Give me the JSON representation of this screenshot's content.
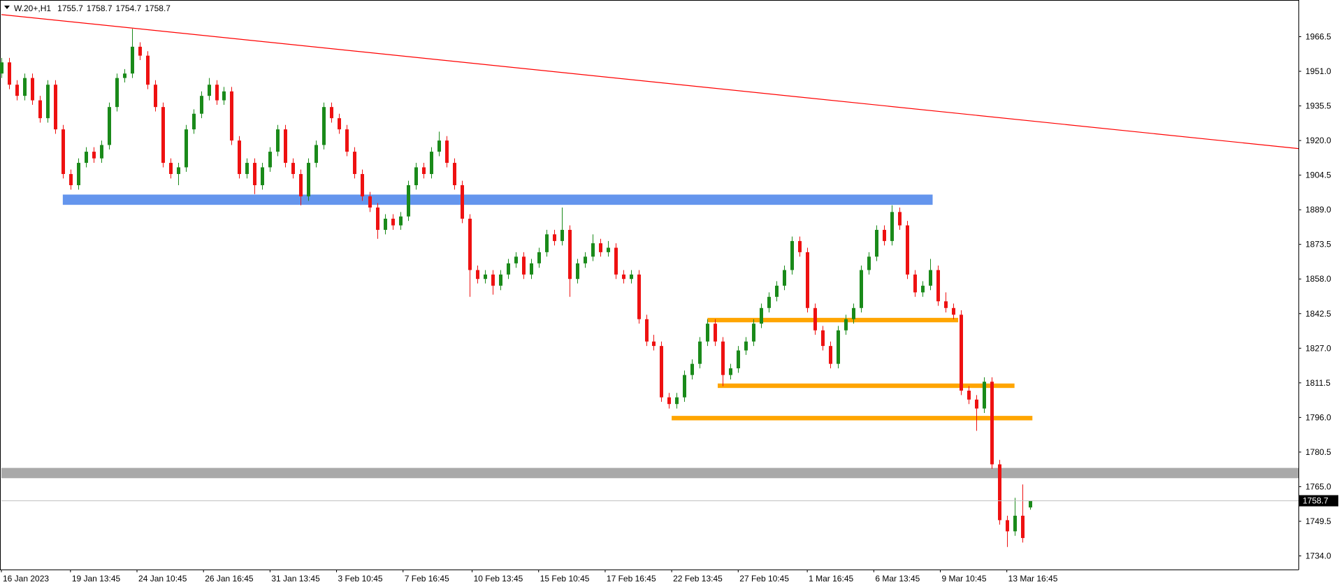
{
  "chart_data": {
    "type": "candlestick",
    "symbol": "W.20+,H1",
    "x": [
      0,
      3,
      6,
      9,
      12,
      15,
      18,
      21,
      24,
      27,
      30,
      33,
      36,
      39,
      42,
      45,
      48,
      51,
      54,
      57,
      60,
      63,
      66,
      69,
      72,
      75,
      78,
      81,
      84,
      87,
      90,
      93,
      96,
      99,
      102,
      105,
      108,
      111,
      114,
      117,
      120,
      123,
      126,
      129,
      132,
      135,
      138,
      141,
      144,
      147,
      150,
      153,
      156,
      159,
      162,
      165,
      168,
      171,
      174,
      177,
      180,
      183,
      186,
      189,
      192,
      195,
      198,
      201,
      204,
      207,
      210,
      213,
      216,
      219,
      222,
      225,
      228,
      231,
      234,
      237,
      240,
      243,
      246,
      249,
      252,
      255,
      258,
      261,
      264,
      267,
      270,
      273,
      276,
      279,
      282,
      285,
      288,
      291,
      294,
      297,
      300,
      303,
      306,
      309,
      312,
      315,
      318,
      321,
      324,
      327,
      330,
      333,
      336,
      339,
      342,
      345,
      348,
      351,
      354,
      357,
      360,
      363,
      366,
      369,
      372,
      375,
      378,
      381,
      384,
      387,
      390,
      393,
      396,
      399,
      402
    ],
    "ohlc": [
      [
        1950,
        1957,
        1948,
        1955
      ],
      [
        1955,
        1957,
        1943,
        1945
      ],
      [
        1945,
        1947,
        1938,
        1940
      ],
      [
        1940,
        1950,
        1938,
        1948
      ],
      [
        1948,
        1950,
        1936,
        1938
      ],
      [
        1938,
        1940,
        1928,
        1930
      ],
      [
        1930,
        1947,
        1928,
        1945
      ],
      [
        1945,
        1947,
        1923,
        1925
      ],
      [
        1925,
        1927,
        1903,
        1905
      ],
      [
        1905,
        1907,
        1898,
        1900
      ],
      [
        1900,
        1912,
        1898,
        1910
      ],
      [
        1910,
        1917,
        1908,
        1915
      ],
      [
        1915,
        1917,
        1910,
        1912
      ],
      [
        1912,
        1920,
        1910,
        1918
      ],
      [
        1918,
        1937,
        1916,
        1935
      ],
      [
        1935,
        1950,
        1933,
        1948
      ],
      [
        1948,
        1952,
        1946,
        1950
      ],
      [
        1950,
        1970,
        1948,
        1962
      ],
      [
        1962,
        1964,
        1956,
        1958
      ],
      [
        1958,
        1960,
        1943,
        1945
      ],
      [
        1945,
        1947,
        1933,
        1935
      ],
      [
        1935,
        1937,
        1908,
        1910
      ],
      [
        1910,
        1912,
        1903,
        1905
      ],
      [
        1905,
        1910,
        1900,
        1908
      ],
      [
        1908,
        1927,
        1906,
        1925
      ],
      [
        1925,
        1934,
        1923,
        1932
      ],
      [
        1932,
        1942,
        1930,
        1940
      ],
      [
        1940,
        1948,
        1938,
        1945
      ],
      [
        1945,
        1947,
        1936,
        1938
      ],
      [
        1938,
        1944,
        1936,
        1942
      ],
      [
        1942,
        1944,
        1918,
        1920
      ],
      [
        1920,
        1922,
        1903,
        1905
      ],
      [
        1905,
        1912,
        1903,
        1910
      ],
      [
        1910,
        1912,
        1896,
        1900
      ],
      [
        1900,
        1910,
        1898,
        1908
      ],
      [
        1908,
        1917,
        1906,
        1915
      ],
      [
        1915,
        1927,
        1913,
        1925
      ],
      [
        1925,
        1927,
        1908,
        1910
      ],
      [
        1910,
        1912,
        1903,
        1905
      ],
      [
        1905,
        1907,
        1891,
        1895
      ],
      [
        1895,
        1912,
        1893,
        1910
      ],
      [
        1910,
        1920,
        1908,
        1918
      ],
      [
        1918,
        1937,
        1916,
        1935
      ],
      [
        1935,
        1937,
        1928,
        1930
      ],
      [
        1930,
        1932,
        1923,
        1925
      ],
      [
        1925,
        1927,
        1913,
        1915
      ],
      [
        1915,
        1917,
        1903,
        1905
      ],
      [
        1905,
        1907,
        1893,
        1895
      ],
      [
        1895,
        1897,
        1888,
        1890
      ],
      [
        1890,
        1892,
        1876,
        1880
      ],
      [
        1880,
        1887,
        1878,
        1885
      ],
      [
        1885,
        1887,
        1880,
        1882
      ],
      [
        1882,
        1888,
        1880,
        1886
      ],
      [
        1886,
        1902,
        1884,
        1900
      ],
      [
        1900,
        1910,
        1898,
        1908
      ],
      [
        1908,
        1910,
        1903,
        1905
      ],
      [
        1905,
        1917,
        1903,
        1915
      ],
      [
        1915,
        1924,
        1913,
        1920
      ],
      [
        1920,
        1922,
        1908,
        1910
      ],
      [
        1910,
        1912,
        1898,
        1900
      ],
      [
        1900,
        1902,
        1883,
        1885
      ],
      [
        1885,
        1887,
        1850,
        1862
      ],
      [
        1862,
        1864,
        1856,
        1858
      ],
      [
        1858,
        1862,
        1856,
        1860
      ],
      [
        1860,
        1862,
        1851,
        1855
      ],
      [
        1855,
        1862,
        1853,
        1860
      ],
      [
        1860,
        1867,
        1858,
        1865
      ],
      [
        1865,
        1870,
        1863,
        1868
      ],
      [
        1868,
        1870,
        1858,
        1860
      ],
      [
        1860,
        1867,
        1858,
        1865
      ],
      [
        1865,
        1872,
        1863,
        1870
      ],
      [
        1870,
        1880,
        1868,
        1878
      ],
      [
        1878,
        1880,
        1873,
        1875
      ],
      [
        1875,
        1890,
        1873,
        1880
      ],
      [
        1880,
        1882,
        1850,
        1858
      ],
      [
        1858,
        1867,
        1856,
        1865
      ],
      [
        1865,
        1870,
        1863,
        1868
      ],
      [
        1868,
        1878,
        1866,
        1874
      ],
      [
        1874,
        1876,
        1868,
        1870
      ],
      [
        1870,
        1875,
        1868,
        1872
      ],
      [
        1872,
        1874,
        1858,
        1860
      ],
      [
        1860,
        1862,
        1856,
        1858
      ],
      [
        1858,
        1862,
        1856,
        1860
      ],
      [
        1860,
        1862,
        1838,
        1840
      ],
      [
        1840,
        1842,
        1828,
        1830
      ],
      [
        1830,
        1833,
        1826,
        1828
      ],
      [
        1828,
        1830,
        1803,
        1805
      ],
      [
        1805,
        1807,
        1800,
        1802
      ],
      [
        1802,
        1807,
        1800,
        1805
      ],
      [
        1805,
        1817,
        1803,
        1815
      ],
      [
        1815,
        1822,
        1813,
        1820
      ],
      [
        1820,
        1832,
        1818,
        1830
      ],
      [
        1830,
        1840,
        1828,
        1838
      ],
      [
        1838,
        1840,
        1828,
        1830
      ],
      [
        1830,
        1832,
        1810,
        1815
      ],
      [
        1815,
        1820,
        1813,
        1818
      ],
      [
        1818,
        1828,
        1816,
        1826
      ],
      [
        1826,
        1832,
        1824,
        1830
      ],
      [
        1830,
        1840,
        1828,
        1838
      ],
      [
        1838,
        1847,
        1836,
        1845
      ],
      [
        1845,
        1852,
        1843,
        1850
      ],
      [
        1850,
        1857,
        1848,
        1855
      ],
      [
        1855,
        1864,
        1853,
        1862
      ],
      [
        1862,
        1877,
        1860,
        1875
      ],
      [
        1875,
        1877,
        1868,
        1870
      ],
      [
        1870,
        1872,
        1843,
        1845
      ],
      [
        1845,
        1847,
        1833,
        1835
      ],
      [
        1835,
        1837,
        1826,
        1828
      ],
      [
        1828,
        1830,
        1818,
        1820
      ],
      [
        1820,
        1837,
        1818,
        1835
      ],
      [
        1835,
        1842,
        1833,
        1840
      ],
      [
        1840,
        1847,
        1838,
        1845
      ],
      [
        1845,
        1864,
        1843,
        1862
      ],
      [
        1862,
        1870,
        1860,
        1868
      ],
      [
        1868,
        1882,
        1866,
        1880
      ],
      [
        1880,
        1882,
        1873,
        1875
      ],
      [
        1875,
        1891,
        1873,
        1888
      ],
      [
        1888,
        1890,
        1880,
        1882
      ],
      [
        1882,
        1884,
        1858,
        1860
      ],
      [
        1860,
        1862,
        1850,
        1852
      ],
      [
        1852,
        1857,
        1850,
        1855
      ],
      [
        1855,
        1867,
        1853,
        1862
      ],
      [
        1862,
        1864,
        1846,
        1848
      ],
      [
        1848,
        1852,
        1843,
        1845
      ],
      [
        1845,
        1847,
        1840,
        1842
      ],
      [
        1842,
        1844,
        1806,
        1808
      ],
      [
        1808,
        1810,
        1802,
        1804
      ],
      [
        1804,
        1806,
        1790,
        1800
      ],
      [
        1800,
        1814,
        1798,
        1812
      ],
      [
        1812,
        1814,
        1773,
        1775
      ],
      [
        1775,
        1777,
        1748,
        1750
      ],
      [
        1750,
        1752,
        1738,
        1745
      ],
      [
        1745,
        1760,
        1743,
        1752
      ],
      [
        1752,
        1766,
        1740,
        1742
      ],
      [
        1755.7,
        1758.7,
        1754.7,
        1758.7
      ]
    ],
    "up_color": "#1a8a1a",
    "down_color": "#ee1111",
    "xlim": [
      0,
      507
    ],
    "xticks": [
      {
        "value": 0,
        "label": "16 Jan 2023"
      },
      {
        "value": 27,
        "label": "19 Jan 13:45"
      },
      {
        "value": 53,
        "label": "24 Jan 10:45"
      },
      {
        "value": 79,
        "label": "26 Jan 16:45"
      },
      {
        "value": 105,
        "label": "31 Jan 13:45"
      },
      {
        "value": 131,
        "label": "3 Feb 10:45"
      },
      {
        "value": 157,
        "label": "7 Feb 16:45"
      },
      {
        "value": 184,
        "label": "10 Feb 13:45"
      },
      {
        "value": 210,
        "label": "15 Feb 10:45"
      },
      {
        "value": 236,
        "label": "17 Feb 16:45"
      },
      {
        "value": 262,
        "label": "22 Feb 13:45"
      },
      {
        "value": 288,
        "label": "27 Feb 10:45"
      },
      {
        "value": 315,
        "label": "1 Mar 16:45"
      },
      {
        "value": 341,
        "label": "6 Mar 13:45"
      },
      {
        "value": 367,
        "label": "9 Mar 10:45"
      },
      {
        "value": 393,
        "label": "13 Mar 16:45"
      }
    ],
    "ylim": [
      1727.9,
      1982.3
    ],
    "yticks": [
      1966.5,
      {
        "value": 1951,
        "label": "1951.0"
      },
      1935.5,
      {
        "value": 1920,
        "label": "1920.0"
      },
      1904.5,
      {
        "value": 1889,
        "label": "1889.0"
      },
      1873.5,
      {
        "value": 1858,
        "label": "1858.0"
      },
      1842.5,
      {
        "value": 1827,
        "label": "1827.0"
      },
      1811.5,
      {
        "value": 1796,
        "label": "1796.0"
      },
      1780.5,
      {
        "value": 1765,
        "label": "1765.0"
      },
      1749.5,
      {
        "value": 1734,
        "label": "1734.0"
      }
    ],
    "zones": [
      {
        "from": 24,
        "to": 364,
        "low": 1891.2,
        "high": 1895.8,
        "color": "#6495ed"
      },
      {
        "from": 276,
        "to": 374,
        "low": 1838.6,
        "high": 1840.6,
        "color": "#ffa500"
      },
      {
        "from": 280,
        "to": 396,
        "low": 1809.2,
        "high": 1811.2,
        "color": "#ffa500"
      },
      {
        "from": 262,
        "to": 403,
        "low": 1794.7,
        "high": 1796.7,
        "color": "#ffa500"
      },
      {
        "from": 0,
        "to": 507,
        "low": 1768.8,
        "high": 1773.4,
        "color": "#a9a9a9"
      }
    ],
    "trendline": {
      "x": [
        0,
        507
      ],
      "y": [
        1976.4,
        1916.4
      ],
      "color": "#ff0000"
    }
  }
}
